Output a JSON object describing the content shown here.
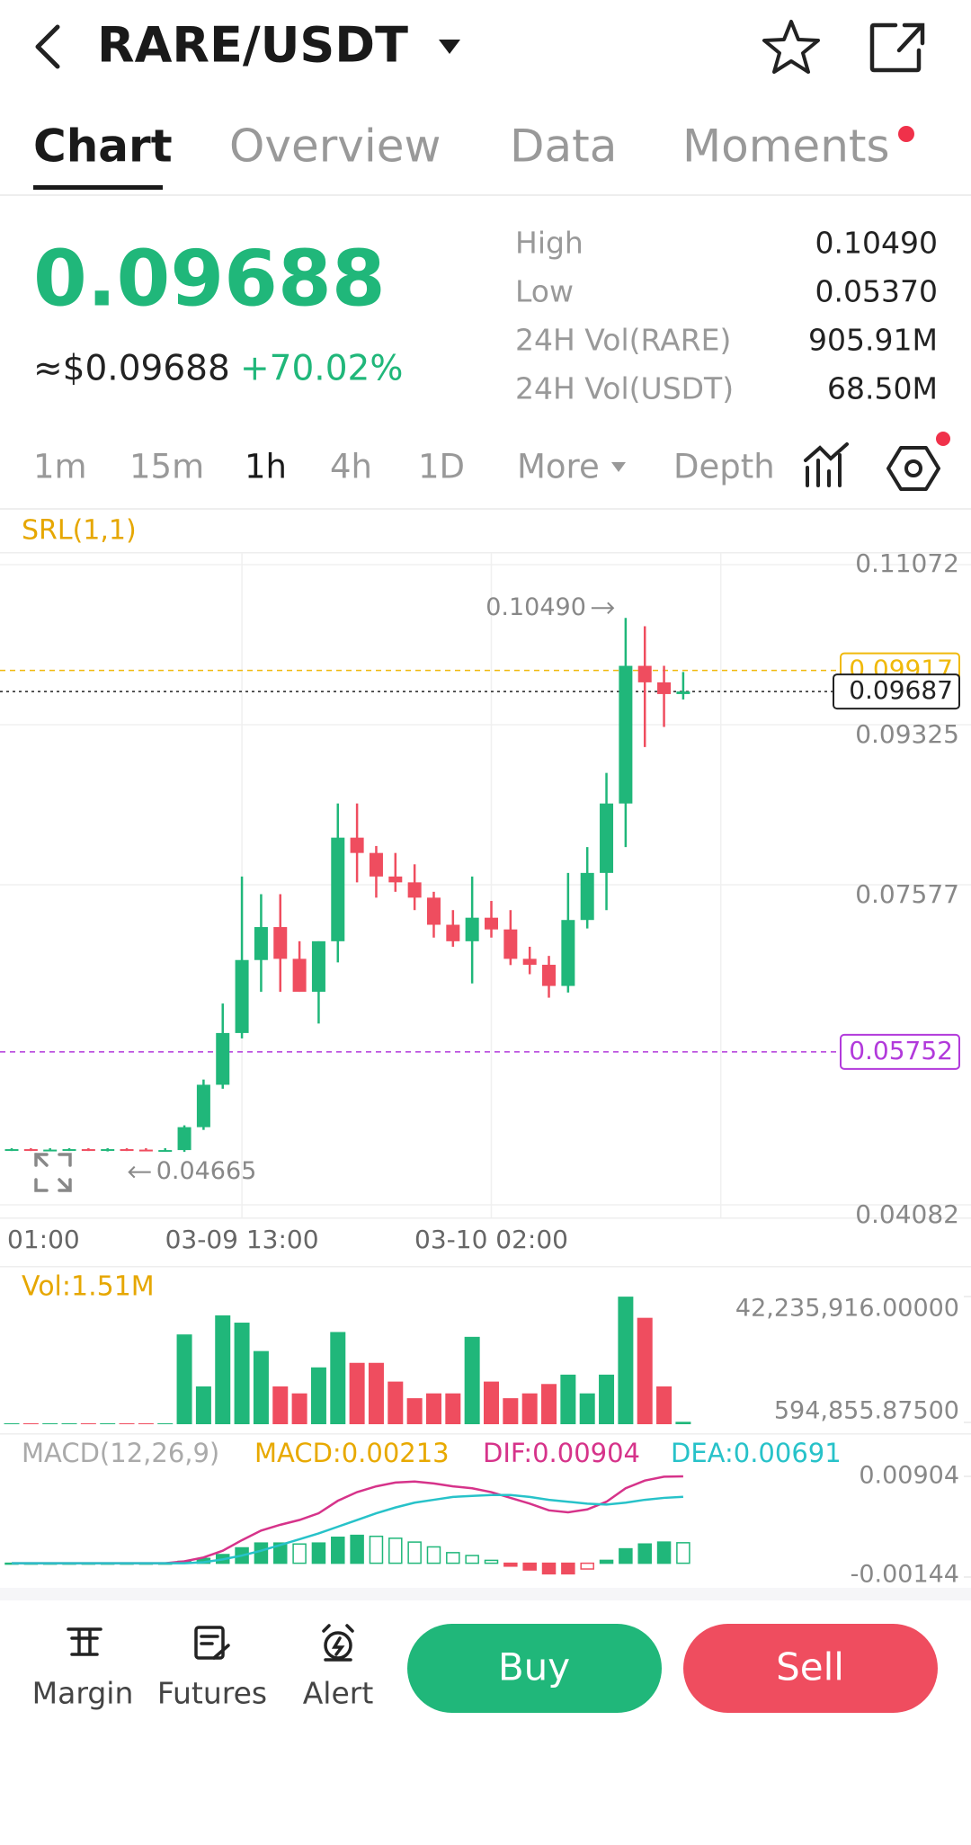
{
  "header": {
    "title": "RARE/USDT"
  },
  "tabs": [
    "Chart",
    "Overview",
    "Data",
    "Moments"
  ],
  "ticker": {
    "price": "0.09688",
    "usd_price": "≈$0.09688",
    "change": "+70.02%",
    "stats": [
      {
        "label": "High",
        "value": "0.10490"
      },
      {
        "label": "Low",
        "value": "0.05370"
      },
      {
        "label": "24H Vol(RARE)",
        "value": "905.91M"
      },
      {
        "label": "24H Vol(USDT)",
        "value": "68.50M"
      }
    ]
  },
  "intervals": [
    "1m",
    "15m",
    "1h",
    "4h",
    "1D",
    "More",
    "Depth"
  ],
  "chart_data": [
    {
      "type": "candlestick",
      "indicator": "SRL(1,1)",
      "categories": [
        "01:00",
        null,
        null,
        null,
        null,
        null,
        null,
        null,
        null,
        null,
        null,
        null,
        "03-09 13:00",
        null,
        null,
        null,
        null,
        null,
        null,
        null,
        null,
        null,
        null,
        null,
        null,
        "03-10 02:00",
        null,
        null,
        null,
        null,
        null,
        null,
        null,
        null,
        null,
        null
      ],
      "open": [
        0.0468,
        0.0469,
        0.0468,
        0.04685,
        0.0469,
        0.0468,
        0.0469,
        0.04685,
        0.0468,
        0.0468,
        0.0493,
        0.05393,
        0.05958,
        0.06755,
        0.07115,
        0.06768,
        0.06408,
        0.0696,
        0.08091,
        0.07924,
        0.07667,
        0.07603,
        0.07436,
        0.0714,
        0.0696,
        0.07217,
        0.07089,
        0.06768,
        0.06703,
        0.06472,
        0.07192,
        0.07706,
        0.08464,
        0.09967,
        0.09787,
        0.09659
      ],
      "high": [
        0.047,
        0.047,
        0.047,
        0.047,
        0.047,
        0.047,
        0.047,
        0.047,
        0.047,
        0.0495,
        0.0545,
        0.0628,
        0.07667,
        0.07474,
        0.07474,
        0.0696,
        0.0696,
        0.08464,
        0.08464,
        0.08,
        0.07924,
        0.078,
        0.075,
        0.073,
        0.07667,
        0.074,
        0.073,
        0.069,
        0.068,
        0.07706,
        0.07988,
        0.08798,
        0.1049,
        0.104,
        0.09967,
        0.099
      ],
      "low": [
        0.0467,
        0.0467,
        0.0467,
        0.0467,
        0.0467,
        0.04665,
        0.0467,
        0.0467,
        0.0467,
        0.0466,
        0.049,
        0.0535,
        0.059,
        0.06408,
        0.06408,
        0.06408,
        0.06061,
        0.06729,
        0.07603,
        0.07436,
        0.075,
        0.073,
        0.07,
        0.069,
        0.065,
        0.07,
        0.067,
        0.066,
        0.06344,
        0.064,
        0.071,
        0.073,
        0.07988,
        0.0908,
        0.093,
        0.096
      ],
      "close": [
        0.0469,
        0.0468,
        0.04685,
        0.0469,
        0.0468,
        0.0469,
        0.04685,
        0.0468,
        0.0468,
        0.0493,
        0.05393,
        0.05958,
        0.06755,
        0.07115,
        0.06768,
        0.06408,
        0.0696,
        0.08091,
        0.07924,
        0.07667,
        0.07603,
        0.07436,
        0.0714,
        0.0696,
        0.07217,
        0.07089,
        0.06768,
        0.06703,
        0.06472,
        0.07192,
        0.07706,
        0.08464,
        0.09967,
        0.09787,
        0.09659,
        0.09687
      ],
      "up_color": "#20b77a",
      "down_color": "#ef4d5f",
      "ylim": [
        0.04082,
        0.11072
      ],
      "yticks": [
        0.11072,
        0.09325,
        0.07577,
        0.04082
      ],
      "grid": true,
      "lines": [
        {
          "value": 0.09917,
          "color": "#f0b90b",
          "style": "dashed"
        },
        {
          "value": 0.09687,
          "color": "#222222",
          "style": "dotted"
        },
        {
          "value": 0.05752,
          "color": "#b23adb",
          "style": "dashed"
        }
      ],
      "high_marker": {
        "value": 0.1049,
        "label": "0.10490"
      },
      "low_marker": 0.04665
    },
    {
      "type": "bar",
      "title": "Vol:1.51M",
      "values": [
        300000,
        300000,
        300000,
        300000,
        300000,
        300000,
        300000,
        300000,
        300000,
        29700000,
        12500000,
        36000000,
        33600000,
        24200000,
        12500000,
        10200000,
        18800000,
        30500000,
        20300000,
        20300000,
        14100000,
        8600000,
        10200000,
        10200000,
        28900000,
        14100000,
        8600000,
        10200000,
        13300000,
        16400000,
        10200000,
        16400000,
        42200000,
        35200000,
        12500000,
        800000
      ],
      "ylim": [
        0,
        42235916
      ],
      "yticks": [
        {
          "value": 42235916,
          "label": "42,235,916.00000"
        },
        {
          "value": 594855.875,
          "label": "594,855.87500"
        }
      ]
    },
    {
      "type": "macd",
      "title": "MACD(12,26,9)",
      "series": [
        {
          "name": "MACD:0.00213",
          "color": "#e8a900",
          "values": [
            0,
            0,
            0,
            0,
            0,
            0,
            0,
            0,
            0,
            0.0002,
            0.0005,
            0.0009,
            0.0016,
            0.0021,
            0.0021,
            0.002,
            0.0021,
            0.0027,
            0.0029,
            0.0028,
            0.0026,
            0.0022,
            0.0017,
            0.0011,
            0.0008,
            0.0003,
            -0.0003,
            -0.0007,
            -0.0011,
            -0.0011,
            -0.0006,
            0.0003,
            0.0015,
            0.002,
            0.0022,
            0.00213
          ]
        },
        {
          "name": "DIF:0.00904",
          "color": "#d6338a",
          "values": [
            0,
            0,
            0,
            0,
            0,
            0,
            0,
            0,
            0,
            0.0002,
            0.0006,
            0.0013,
            0.0024,
            0.0034,
            0.004,
            0.0045,
            0.0052,
            0.0065,
            0.0074,
            0.008,
            0.0084,
            0.0085,
            0.0083,
            0.008,
            0.0078,
            0.0074,
            0.0068,
            0.0062,
            0.0055,
            0.0053,
            0.0056,
            0.0064,
            0.0078,
            0.0086,
            0.009,
            0.00904
          ]
        },
        {
          "name": "DEA:0.00691",
          "color": "#27c2c9",
          "values": [
            0,
            0,
            0,
            0,
            0,
            0,
            0,
            0,
            0,
            0,
            0.0001,
            0.0004,
            0.0008,
            0.0013,
            0.0019,
            0.0025,
            0.0031,
            0.0038,
            0.0045,
            0.0052,
            0.0058,
            0.0063,
            0.0066,
            0.0069,
            0.007,
            0.0071,
            0.0071,
            0.0069,
            0.0066,
            0.0064,
            0.0062,
            0.0061,
            0.0063,
            0.0066,
            0.0068,
            0.00691
          ]
        }
      ],
      "ylim": [
        -0.00144,
        0.00904
      ],
      "yticks": [
        0.00904,
        -0.00144
      ]
    }
  ],
  "toolbar": {
    "tools": [
      "Margin",
      "Futures",
      "Alert"
    ],
    "buy": "Buy",
    "sell": "Sell"
  }
}
